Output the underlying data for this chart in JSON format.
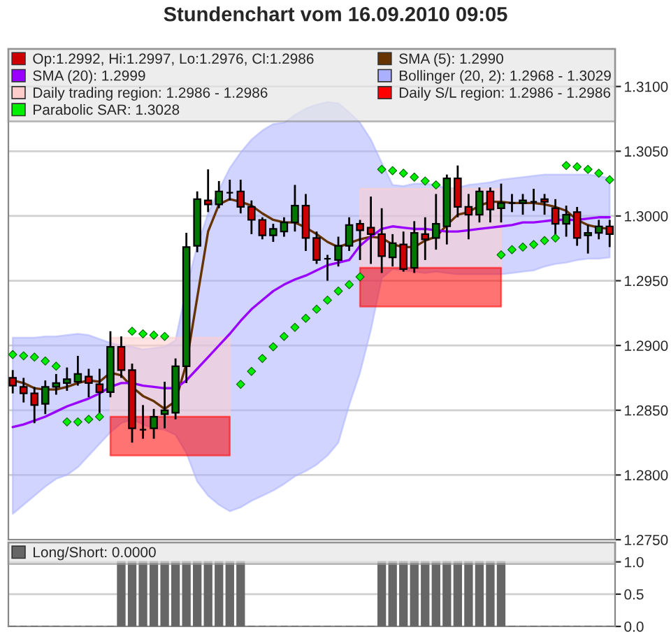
{
  "chart_data": [
    {
      "type": "candlestick",
      "title": "Stundenchart vom 16.09.2010 09:05",
      "categories": [
        null,
        null,
        null,
        null,
        null,
        null,
        null,
        null,
        null,
        null,
        null,
        null,
        null,
        null,
        null,
        null,
        null,
        null,
        null,
        null,
        null,
        null,
        null,
        null,
        null,
        null,
        null,
        null,
        null,
        null,
        null,
        null,
        null,
        null,
        null,
        null,
        null,
        null,
        null,
        null,
        null,
        null,
        null,
        null,
        null,
        null,
        null,
        null,
        null,
        null,
        null,
        null,
        null,
        null,
        null,
        null
      ],
      "ylim": [
        1.275,
        1.3129
      ],
      "yticks": [
        {
          "value": 1.275,
          "label": "1.2750"
        },
        {
          "value": 1.28,
          "label": "1.2800"
        },
        {
          "value": 1.285,
          "label": "1.2850"
        },
        {
          "value": 1.29,
          "label": "1.2900"
        },
        {
          "value": 1.295,
          "label": "1.2950"
        },
        {
          "value": 1.3,
          "label": "1.3000"
        },
        {
          "value": 1.305,
          "label": "1.3050"
        },
        {
          "value": 1.31,
          "label": "1.3100"
        }
      ],
      "grid": "y",
      "legend": "top left",
      "tick_labels": "y",
      "series": [
        {
          "type": "candlestick",
          "name": "Op:1.2992, Hi:1.2997, Lo:1.2976, Cl:1.2986",
          "color": "#cc0000",
          "ohlc": [
            [
              1.2875,
              1.2881,
              1.2863,
              1.2869
            ],
            [
              1.2868,
              1.2875,
              1.2856,
              1.2863
            ],
            [
              1.2863,
              1.2868,
              1.284,
              1.2854
            ],
            [
              1.2855,
              1.2873,
              1.2847,
              1.2868
            ],
            [
              1.2868,
              1.2878,
              1.2862,
              1.2871
            ],
            [
              1.2871,
              1.2883,
              1.2865,
              1.2874
            ],
            [
              1.2872,
              1.2892,
              1.2869,
              1.2878
            ],
            [
              1.2876,
              1.2882,
              1.286,
              1.2871
            ],
            [
              1.287,
              1.2882,
              1.2848,
              1.2864
            ],
            [
              1.2864,
              1.2911,
              1.286,
              1.2899
            ],
            [
              1.2899,
              1.2907,
              1.2875,
              1.2881
            ],
            [
              1.2881,
              1.2886,
              1.2825,
              1.2836
            ],
            [
              1.2835,
              1.2854,
              1.2828,
              1.2835
            ],
            [
              1.2836,
              1.2851,
              1.2828,
              1.2845
            ],
            [
              1.2847,
              1.2872,
              1.2836,
              1.285
            ],
            [
              1.2848,
              1.289,
              1.2843,
              1.2884
            ],
            [
              1.2884,
              1.2987,
              1.2871,
              1.2976
            ],
            [
              1.2977,
              1.3019,
              1.2972,
              1.3013
            ],
            [
              1.3012,
              1.3036,
              1.3003,
              1.3009
            ],
            [
              1.3009,
              1.3027,
              1.3006,
              1.3019
            ],
            [
              1.3018,
              1.3028,
              1.3012,
              1.3018
            ],
            [
              1.3019,
              1.3028,
              1.3002,
              1.3007
            ],
            [
              1.3007,
              1.3012,
              1.2986,
              1.2997
            ],
            [
              1.2997,
              1.2999,
              1.2982,
              1.2985
            ],
            [
              1.2985,
              1.2994,
              1.298,
              1.299
            ],
            [
              1.2988,
              1.2999,
              1.2984,
              1.2995
            ],
            [
              1.2995,
              1.3024,
              1.2988,
              1.3008
            ],
            [
              1.3008,
              1.3017,
              1.2973,
              1.2983
            ],
            [
              1.2983,
              1.2988,
              1.2963,
              1.2966
            ],
            [
              1.2967,
              1.297,
              1.295,
              1.2967
            ],
            [
              1.2966,
              1.2984,
              1.2961,
              1.2977
            ],
            [
              1.2977,
              1.2999,
              1.2973,
              1.2993
            ],
            [
              1.2994,
              1.2997,
              1.2966,
              1.2989
            ],
            [
              1.2991,
              1.3015,
              1.2963,
              1.2986
            ],
            [
              1.2986,
              1.3006,
              1.2956,
              1.2969
            ],
            [
              1.2968,
              1.2986,
              1.2961,
              1.2979
            ],
            [
              1.2978,
              1.2988,
              1.2957,
              1.2959
            ],
            [
              1.296,
              1.2996,
              1.2956,
              1.2987
            ],
            [
              1.2986,
              1.2999,
              1.2966,
              1.2982
            ],
            [
              1.2983,
              1.3017,
              1.2974,
              1.2994
            ],
            [
              1.2992,
              1.3032,
              1.2978,
              1.3029
            ],
            [
              1.3029,
              1.3039,
              1.2999,
              1.3007
            ],
            [
              1.3007,
              1.3017,
              1.2982,
              1.3001
            ],
            [
              1.3001,
              1.3022,
              1.2995,
              1.3019
            ],
            [
              1.3019,
              1.3022,
              1.2995,
              1.3005
            ],
            [
              1.3006,
              1.3025,
              1.2995,
              1.301
            ],
            [
              1.301,
              1.3017,
              1.3003,
              1.301
            ],
            [
              1.301,
              1.3017,
              1.3001,
              1.3012
            ],
            [
              1.3011,
              1.3021,
              1.3004,
              1.3011
            ],
            [
              1.3013,
              1.3017,
              1.3001,
              1.3011
            ],
            [
              1.3006,
              1.3013,
              1.2984,
              1.2994
            ],
            [
              1.2994,
              1.3008,
              1.2984,
              1.3001
            ],
            [
              1.3003,
              1.3007,
              1.2977,
              1.2983
            ],
            [
              1.2985,
              1.2993,
              1.2971,
              1.2987
            ],
            [
              1.2987,
              1.2997,
              1.2982,
              1.2992
            ],
            [
              1.2992,
              1.2997,
              1.2976,
              1.2986
            ]
          ],
          "colors": [
            "#cc0000",
            "#cc0000",
            "#cc0000",
            "#007700",
            "#007700",
            "#007700",
            "#007700",
            "#cc0000",
            "#cc0000",
            "#007700",
            "#cc0000",
            "#cc0000",
            "#000000",
            "#007700",
            "#007700",
            "#007700",
            "#007700",
            "#007700",
            "#cc0000",
            "#007700",
            "#000000",
            "#cc0000",
            "#cc0000",
            "#cc0000",
            "#007700",
            "#007700",
            "#007700",
            "#cc0000",
            "#cc0000",
            "#000000",
            "#007700",
            "#007700",
            "#cc0000",
            "#cc0000",
            "#cc0000",
            "#007700",
            "#cc0000",
            "#007700",
            "#cc0000",
            "#007700",
            "#007700",
            "#cc0000",
            "#cc0000",
            "#007700",
            "#cc0000",
            "#007700",
            "#000000",
            "#007700",
            "#000000",
            "#cc0000",
            "#cc0000",
            "#007700",
            "#cc0000",
            "#007700",
            "#007700",
            "#cc0000"
          ]
        },
        {
          "type": "line",
          "name": "SMA (5): 1.2990",
          "color": "#663300",
          "values": [
            1.2873,
            1.2871,
            1.2867,
            1.2866,
            1.2866,
            1.2868,
            1.2871,
            1.2873,
            1.2872,
            1.2879,
            1.2877,
            1.2868,
            1.2861,
            1.2857,
            1.2851,
            1.2857,
            1.2886,
            1.2937,
            1.2988,
            1.3009,
            1.3013,
            1.3011,
            1.3008,
            1.3002,
            1.2997,
            1.2995,
            1.2995,
            1.2991,
            1.2986,
            1.298,
            1.2976,
            1.2979,
            1.2982,
            1.2984,
            1.2983,
            1.2978,
            1.2976,
            1.2976,
            1.2981,
            1.2984,
            1.2993,
            1.3001,
            1.3003,
            1.3008,
            1.3011,
            1.3011,
            1.301,
            1.301,
            1.301,
            1.3009,
            1.3007,
            1.3004,
            1.2997,
            1.2993,
            1.2991,
            1.299
          ]
        },
        {
          "type": "line",
          "name": "SMA (20): 1.2999",
          "color": "#9900ff",
          "values": [
            1.2837,
            1.2839,
            1.2842,
            1.2845,
            1.2849,
            1.2853,
            1.2856,
            1.2859,
            1.2863,
            1.2868,
            1.2871,
            1.2871,
            1.2869,
            1.2868,
            1.2867,
            1.2867,
            1.2873,
            1.2882,
            1.2891,
            1.29,
            1.2909,
            1.2919,
            1.2928,
            1.2935,
            1.2942,
            1.2947,
            1.2951,
            1.2954,
            1.2958,
            1.2962,
            1.2964,
            1.2966,
            1.2977,
            1.2984,
            1.299,
            1.2992,
            1.2991,
            1.299,
            1.299,
            1.2989,
            1.2988,
            1.2988,
            1.2989,
            1.299,
            1.2991,
            1.2992,
            1.2993,
            1.2995,
            1.2995,
            1.2996,
            1.2997,
            1.2997,
            1.2997,
            1.2998,
            1.2999,
            1.2999
          ]
        },
        {
          "type": "line",
          "name": "Bollinger (20, 2): 1.2968 - 1.3029",
          "color": "#aab0ff",
          "values": [
            null,
            null,
            null,
            null,
            null,
            null,
            null,
            null,
            null,
            null,
            null,
            null,
            null,
            null,
            null,
            null,
            null,
            null,
            null,
            null,
            null,
            null,
            null,
            null,
            null,
            null,
            null,
            null,
            null,
            null,
            null,
            null,
            null,
            null,
            null,
            null,
            null,
            null,
            null,
            null,
            null,
            null,
            null,
            null,
            null,
            null,
            null,
            null,
            null,
            null,
            null,
            null,
            null,
            null,
            null,
            null
          ],
          "upper": [
            1.2906,
            1.2906,
            1.2906,
            1.2907,
            1.2907,
            1.2908,
            1.2909,
            1.2908,
            1.2905,
            1.2902,
            1.29,
            1.2899,
            1.2897,
            1.2898,
            1.2899,
            1.2904,
            1.2944,
            1.2977,
            1.3002,
            1.302,
            1.3037,
            1.3049,
            1.3059,
            1.3066,
            1.3071,
            1.3072,
            1.3078,
            1.3083,
            1.3086,
            1.3088,
            1.3087,
            1.308,
            1.3072,
            1.3059,
            1.3041,
            1.3024,
            1.3023,
            1.3025,
            1.3025,
            1.3024,
            1.3021,
            1.3022,
            1.3024,
            1.3025,
            1.3026,
            1.3028,
            1.3029,
            1.303,
            1.3031,
            1.3032,
            1.3032,
            1.3032,
            1.3032,
            1.3032,
            1.3031,
            1.3029
          ],
          "lower": [
            1.277,
            1.2777,
            1.2784,
            1.2791,
            1.2797,
            1.28,
            1.2806,
            1.2815,
            1.2824,
            1.2833,
            1.284,
            1.2843,
            1.2839,
            1.2836,
            1.2835,
            1.2831,
            1.2817,
            1.2795,
            1.2784,
            1.2777,
            1.2772,
            1.2775,
            1.278,
            1.2784,
            1.2788,
            1.2793,
            1.2799,
            1.2803,
            1.2808,
            1.2815,
            1.2825,
            1.2854,
            1.2879,
            1.2912,
            1.2952,
            1.2959,
            1.2958,
            1.2957,
            1.2956,
            1.2957,
            1.2956,
            1.2955,
            1.2955,
            1.2955,
            1.2955,
            1.2955,
            1.2956,
            1.2957,
            1.2958,
            1.2961,
            1.2963,
            1.2964,
            1.2966,
            1.2967,
            1.2967,
            1.2968
          ]
        },
        {
          "type": "line",
          "name": "Daily trading region: 1.2986 - 1.2986",
          "color": "#ffcccc",
          "values": [
            null,
            null,
            null,
            null,
            null,
            null,
            null,
            null,
            null,
            null,
            null,
            null,
            null,
            null,
            null,
            null,
            null,
            null,
            null,
            null,
            null,
            null,
            null,
            null,
            null,
            null,
            null,
            null,
            null,
            null,
            null,
            null,
            null,
            null,
            null,
            null,
            null,
            null,
            null,
            null,
            null,
            null,
            null,
            null,
            null,
            null,
            null,
            null,
            null,
            null,
            null,
            null,
            null,
            null,
            null,
            null
          ],
          "upper": [
            null,
            null,
            null,
            null,
            null,
            null,
            null,
            null,
            null,
            1.2906,
            1.2906,
            1.2906,
            1.2906,
            1.2906,
            1.2906,
            1.2906,
            1.2906,
            1.2906,
            1.2906,
            1.2906,
            1.2906,
            null,
            null,
            null,
            null,
            null,
            null,
            null,
            null,
            null,
            null,
            null,
            1.3021,
            1.3021,
            1.3021,
            1.3021,
            1.3021,
            1.3021,
            1.3021,
            1.3021,
            1.3021,
            1.3021,
            1.3021,
            1.3021,
            1.3021,
            1.3021,
            null,
            null,
            null,
            null,
            null,
            null,
            null,
            null,
            null,
            null
          ],
          "lower": [
            null,
            null,
            null,
            null,
            null,
            null,
            null,
            null,
            null,
            1.2845,
            1.2845,
            1.2845,
            1.2845,
            1.2845,
            1.2845,
            1.2845,
            1.2845,
            1.2845,
            1.2845,
            1.2845,
            1.2845,
            null,
            null,
            null,
            null,
            null,
            null,
            null,
            null,
            null,
            null,
            null,
            1.296,
            1.296,
            1.296,
            1.296,
            1.296,
            1.296,
            1.296,
            1.296,
            1.296,
            1.296,
            1.296,
            1.296,
            1.296,
            1.296,
            null,
            null,
            null,
            null,
            null,
            null,
            null,
            null,
            null,
            null
          ]
        },
        {
          "type": "line",
          "name": "Daily S/L region: 1.2986 - 1.2986",
          "color": "#ff0000",
          "values": [
            null,
            null,
            null,
            null,
            null,
            null,
            null,
            null,
            null,
            null,
            null,
            null,
            null,
            null,
            null,
            null,
            null,
            null,
            null,
            null,
            null,
            null,
            null,
            null,
            null,
            null,
            null,
            null,
            null,
            null,
            null,
            null,
            null,
            null,
            null,
            null,
            null,
            null,
            null,
            null,
            null,
            null,
            null,
            null,
            null,
            null,
            null,
            null,
            null,
            null,
            null,
            null,
            null,
            null,
            null,
            null
          ],
          "upper": [
            null,
            null,
            null,
            null,
            null,
            null,
            null,
            null,
            null,
            1.2845,
            1.2845,
            1.2845,
            1.2845,
            1.2845,
            1.2845,
            1.2845,
            1.2845,
            1.2845,
            1.2845,
            1.2845,
            1.2845,
            null,
            null,
            null,
            null,
            null,
            null,
            null,
            null,
            null,
            null,
            null,
            1.296,
            1.296,
            1.296,
            1.296,
            1.296,
            1.296,
            1.296,
            1.296,
            1.296,
            1.296,
            1.296,
            1.296,
            1.296,
            1.296,
            null,
            null,
            null,
            null,
            null,
            null,
            null,
            null,
            null,
            null
          ],
          "lower": [
            null,
            null,
            null,
            null,
            null,
            null,
            null,
            null,
            null,
            1.2815,
            1.2815,
            1.2815,
            1.2815,
            1.2815,
            1.2815,
            1.2815,
            1.2815,
            1.2815,
            1.2815,
            1.2815,
            1.2815,
            null,
            null,
            null,
            null,
            null,
            null,
            null,
            null,
            null,
            null,
            null,
            1.293,
            1.293,
            1.293,
            1.293,
            1.293,
            1.293,
            1.293,
            1.293,
            1.293,
            1.293,
            1.293,
            1.293,
            1.293,
            1.293,
            null,
            null,
            null,
            null,
            null,
            null,
            null,
            null,
            null,
            null
          ]
        },
        {
          "type": "scatter",
          "name": "Parabolic SAR: 1.3028",
          "color": "#00ee00",
          "marker": "diamond",
          "values": [
            1.2893,
            1.2892,
            1.2891,
            1.2888,
            1.2884,
            1.2841,
            1.2841,
            1.2843,
            1.2845,
            null,
            null,
            1.2911,
            1.2909,
            1.2908,
            1.2907,
            null,
            null,
            null,
            null,
            null,
            null,
            1.287,
            1.288,
            1.289,
            1.2899,
            1.2907,
            1.2914,
            1.2921,
            1.2928,
            1.2935,
            1.2942,
            1.2947,
            1.2953,
            null,
            1.3036,
            1.3035,
            1.3033,
            1.303,
            1.3027,
            1.3024,
            null,
            null,
            null,
            null,
            null,
            1.297,
            1.2974,
            1.2976,
            1.2978,
            1.2981,
            1.2983,
            1.3039,
            1.3038,
            1.3036,
            1.3033,
            1.3028
          ]
        }
      ]
    },
    {
      "type": "bar",
      "categories": [
        null,
        null,
        null,
        null,
        null,
        null,
        null,
        null,
        null,
        null,
        null,
        null,
        null,
        null,
        null,
        null,
        null,
        null,
        null,
        null,
        null,
        null,
        null,
        null,
        null,
        null,
        null,
        null,
        null,
        null,
        null,
        null,
        null,
        null,
        null,
        null,
        null,
        null,
        null,
        null,
        null,
        null,
        null,
        null,
        null,
        null,
        null,
        null,
        null,
        null,
        null,
        null,
        null,
        null,
        null,
        null
      ],
      "ylim": [
        0,
        1.3
      ],
      "yticks": [
        {
          "value": 0,
          "label": "0.0"
        },
        {
          "value": 0.5,
          "label": "0.5"
        },
        {
          "value": 1,
          "label": "1.0"
        }
      ],
      "grid": "y",
      "legend": "top left",
      "tick_labels": "y",
      "series": [
        {
          "name": "Long/Short: 0.0000",
          "color": "#666666",
          "values": [
            0,
            0,
            0,
            0,
            0,
            0,
            0,
            0,
            0,
            0,
            1,
            1,
            1,
            1,
            1,
            1,
            1,
            1,
            1,
            1,
            1,
            1,
            0,
            0,
            0,
            0,
            0,
            0,
            0,
            0,
            0,
            0,
            0,
            0,
            1,
            1,
            1,
            1,
            1,
            1,
            1,
            1,
            1,
            1,
            1,
            1,
            0,
            0,
            0,
            0,
            0,
            0,
            0,
            0,
            0,
            0
          ]
        }
      ]
    }
  ]
}
